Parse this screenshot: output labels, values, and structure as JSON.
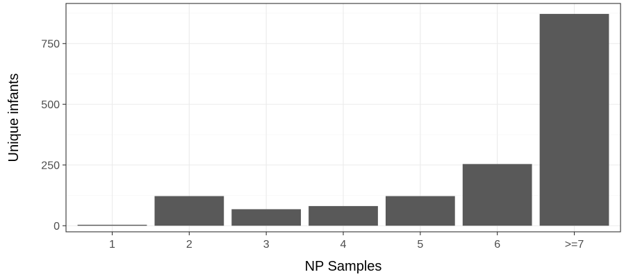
{
  "chart_data": {
    "type": "bar",
    "title": "",
    "xlabel": "NP Samples",
    "ylabel": "Unique infants",
    "categories": [
      "1",
      "2",
      "3",
      "4",
      "5",
      "6",
      ">=7"
    ],
    "values": [
      4,
      122,
      68,
      81,
      122,
      254,
      872
    ],
    "ylim": [
      -25,
      915
    ],
    "yticks": [
      0,
      250,
      500,
      750
    ],
    "ytick_labels": [
      "0",
      "250",
      "500",
      "750"
    ],
    "bar_color": "#595959",
    "grid": true,
    "legend": "none",
    "theme": "bw"
  }
}
